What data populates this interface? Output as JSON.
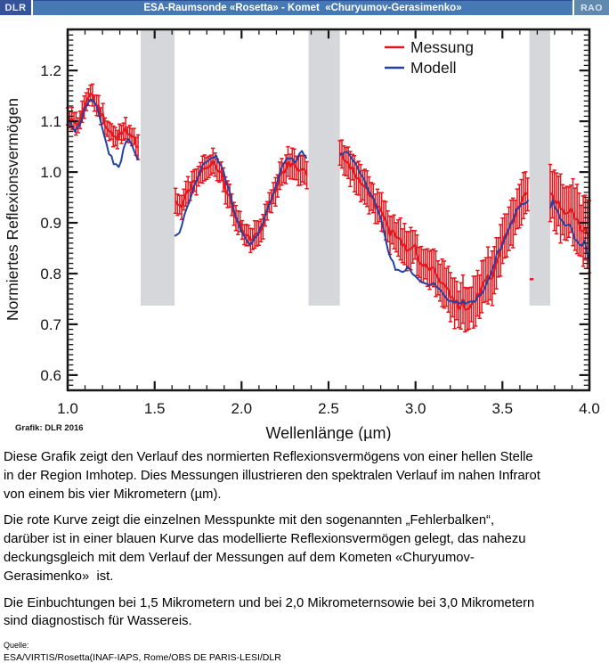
{
  "header": {
    "left_logo": "DLR",
    "title": "ESA-Raumsonde «Rosetta» - Komet  «Churyumov-Gerasimenko»",
    "right_logo": "RAO"
  },
  "credit": "Grafik: DLR 2016",
  "description": {
    "paragraphs": [
      {
        "lines": [
          "Diese Grafik zeigt den Verlauf des normierten Reflexionsvermögens von einer hellen Stelle",
          "in der Region Imhotep. Dies Messungen illustrieren den spektralen Verlauf im nahen Infrarot",
          "von einem bis vier Mikrometern (µm)."
        ]
      },
      {
        "lines": [
          "Die rote Kurve zeigt die einzelnen Messpunkte mit den sogenannten „Fehlerbalken“,",
          "darüber ist in einer blauen Kurve das modellierte Reflexionsvermögen gelegt, das nahezu",
          "deckungsgleich mit dem Verlauf der Messungen auf dem Kometen «Churyumov-",
          "Gerasimenko»  ist."
        ]
      },
      {
        "lines": [
          "Die Einbuchtungen bei 1,5 Mikrometern und bei 2,0 Mikrometernsowie bei 3,0 Mikrometern",
          "sind diagnostisch für Wassereis."
        ]
      }
    ]
  },
  "source": {
    "label": "Quelle:",
    "line": "ESA/VIRTIS/Rosetta(INAF-IAPS, Rome/OBS DE PARIS-LESI/DLR"
  },
  "chart_data": {
    "type": "line",
    "xlabel": "Wellenlänge (µm)",
    "ylabel": "Normiertes Reflexionsvermögen",
    "xlim": [
      1.0,
      4.0
    ],
    "ylim": [
      0.57,
      1.281
    ],
    "x_major_ticks": [
      1.0,
      1.5,
      2.0,
      2.5,
      3.0,
      3.5,
      4.0
    ],
    "x_tick_labels": [
      "1.0",
      "1.5",
      "2.0",
      "2.5",
      "3.0",
      "3.5",
      "4.0"
    ],
    "x_minor_step": 0.1,
    "y_major_ticks": [
      0.6,
      0.7,
      0.8,
      0.9,
      1.0,
      1.1,
      1.2
    ],
    "y_tick_labels": [
      "0.6",
      "0.7",
      "0.8",
      "0.9",
      "1.0",
      "1.1",
      "1.2"
    ],
    "y_minor_step": 0.01,
    "grid": false,
    "legend_position": "top-right",
    "legend": [
      {
        "label": "Messung",
        "color": "#e6161d"
      },
      {
        "label": "Modell",
        "color": "#2043a5"
      }
    ],
    "colors": {
      "band": "#d5d7da",
      "axis": "#161616",
      "credit_gray": "#7c7c7c"
    },
    "masked_bands_um": [
      [
        1.42,
        1.615
      ],
      [
        2.385,
        2.565
      ],
      [
        3.655,
        3.775
      ]
    ],
    "band_bottom_value": 0.737,
    "stray_points": [
      {
        "x": 3.668,
        "y": 0.789
      }
    ],
    "series": [
      {
        "name": "Messung",
        "color": "#e6161d",
        "style": "errorbar",
        "segments": [
          [
            [
              1.0,
              1.11,
              0.018
            ],
            [
              1.02,
              1.1,
              0.018
            ],
            [
              1.045,
              1.092,
              0.018
            ],
            [
              1.07,
              1.103,
              0.018
            ],
            [
              1.1,
              1.133,
              0.018
            ],
            [
              1.13,
              1.148,
              0.018
            ],
            [
              1.16,
              1.14,
              0.018
            ],
            [
              1.195,
              1.11,
              0.018
            ],
            [
              1.235,
              1.082,
              0.018
            ],
            [
              1.275,
              1.068,
              0.018
            ],
            [
              1.305,
              1.072,
              0.018
            ],
            [
              1.335,
              1.082,
              0.018
            ],
            [
              1.36,
              1.076,
              0.018
            ],
            [
              1.385,
              1.062,
              0.019
            ],
            [
              1.405,
              1.052,
              0.02
            ]
          ],
          [
            [
              1.62,
              0.936,
              0.022
            ],
            [
              1.65,
              0.938,
              0.022
            ],
            [
              1.69,
              0.958,
              0.022
            ],
            [
              1.73,
              0.982,
              0.022
            ],
            [
              1.77,
              1.005,
              0.022
            ],
            [
              1.81,
              1.018,
              0.022
            ],
            [
              1.845,
              1.018,
              0.022
            ],
            [
              1.88,
              1.0,
              0.022
            ],
            [
              1.915,
              0.968,
              0.022
            ],
            [
              1.95,
              0.93,
              0.022
            ],
            [
              1.985,
              0.895,
              0.022
            ],
            [
              2.02,
              0.872,
              0.022
            ],
            [
              2.055,
              0.865,
              0.022
            ],
            [
              2.09,
              0.875,
              0.022
            ],
            [
              2.125,
              0.898,
              0.022
            ],
            [
              2.16,
              0.93,
              0.022
            ],
            [
              2.2,
              0.972,
              0.023
            ],
            [
              2.24,
              1.005,
              0.023
            ],
            [
              2.275,
              1.018,
              0.024
            ],
            [
              2.305,
              1.008,
              0.025
            ],
            [
              2.34,
              1.0,
              0.025
            ],
            [
              2.375,
              0.996,
              0.026
            ]
          ],
          [
            [
              2.565,
              1.042,
              0.03
            ],
            [
              2.6,
              1.018,
              0.03
            ],
            [
              2.64,
              1.004,
              0.03
            ],
            [
              2.68,
              0.985,
              0.03
            ],
            [
              2.73,
              0.956,
              0.03
            ],
            [
              2.78,
              0.934,
              0.031
            ],
            [
              2.83,
              0.904,
              0.032
            ],
            [
              2.87,
              0.876,
              0.032
            ],
            [
              2.91,
              0.868,
              0.033
            ],
            [
              2.95,
              0.846,
              0.034
            ],
            [
              2.99,
              0.855,
              0.034
            ],
            [
              3.03,
              0.824,
              0.035
            ],
            [
              3.07,
              0.812,
              0.036
            ],
            [
              3.11,
              0.803,
              0.037
            ],
            [
              3.145,
              0.78,
              0.038
            ],
            [
              3.18,
              0.768,
              0.039
            ],
            [
              3.215,
              0.752,
              0.04
            ],
            [
              3.245,
              0.736,
              0.04
            ],
            [
              3.27,
              0.744,
              0.04
            ],
            [
              3.3,
              0.728,
              0.041
            ],
            [
              3.33,
              0.744,
              0.041
            ],
            [
              3.36,
              0.754,
              0.042
            ],
            [
              3.39,
              0.775,
              0.043
            ],
            [
              3.415,
              0.798,
              0.045
            ],
            [
              3.44,
              0.786,
              0.043
            ],
            [
              3.47,
              0.822,
              0.042
            ],
            [
              3.5,
              0.858,
              0.041
            ],
            [
              3.53,
              0.884,
              0.04
            ],
            [
              3.56,
              0.906,
              0.04
            ],
            [
              3.59,
              0.932,
              0.04
            ],
            [
              3.62,
              0.948,
              0.04
            ],
            [
              3.645,
              0.958,
              0.04
            ]
          ],
          [
            [
              3.775,
              0.962,
              0.055
            ],
            [
              3.8,
              0.946,
              0.056
            ],
            [
              3.83,
              0.934,
              0.056
            ],
            [
              3.86,
              0.924,
              0.057
            ],
            [
              3.89,
              0.93,
              0.057
            ],
            [
              3.92,
              0.904,
              0.058
            ],
            [
              3.95,
              0.89,
              0.058
            ],
            [
              3.975,
              0.88,
              0.059
            ],
            [
              4.0,
              0.868,
              0.06
            ]
          ]
        ]
      },
      {
        "name": "Modell",
        "color": "#2043a5",
        "style": "line",
        "segments": [
          [
            [
              1.0,
              1.105
            ],
            [
              1.025,
              1.088
            ],
            [
              1.05,
              1.083
            ],
            [
              1.075,
              1.098
            ],
            [
              1.105,
              1.13
            ],
            [
              1.13,
              1.143
            ],
            [
              1.16,
              1.14
            ],
            [
              1.195,
              1.093
            ],
            [
              1.235,
              1.042
            ],
            [
              1.27,
              1.015
            ],
            [
              1.3,
              1.008
            ],
            [
              1.33,
              1.06
            ],
            [
              1.355,
              1.066
            ],
            [
              1.38,
              1.04
            ],
            [
              1.405,
              1.026
            ]
          ],
          [
            [
              1.615,
              0.875
            ],
            [
              1.64,
              0.88
            ],
            [
              1.67,
              0.912
            ],
            [
              1.705,
              0.948
            ],
            [
              1.745,
              0.988
            ],
            [
              1.785,
              1.018
            ],
            [
              1.825,
              1.03
            ],
            [
              1.86,
              1.028
            ],
            [
              1.895,
              1.0
            ],
            [
              1.93,
              0.96
            ],
            [
              1.965,
              0.915
            ],
            [
              2.0,
              0.882
            ],
            [
              2.035,
              0.86
            ],
            [
              2.07,
              0.862
            ],
            [
              2.105,
              0.885
            ],
            [
              2.14,
              0.915
            ],
            [
              2.18,
              0.955
            ],
            [
              2.22,
              0.998
            ],
            [
              2.255,
              1.025
            ],
            [
              2.285,
              1.03
            ],
            [
              2.31,
              1.016
            ],
            [
              2.34,
              1.04
            ],
            [
              2.36,
              1.034
            ],
            [
              2.375,
              1.03
            ]
          ],
          [
            [
              2.565,
              1.03
            ],
            [
              2.59,
              1.042
            ],
            [
              2.615,
              1.034
            ],
            [
              2.65,
              1.016
            ],
            [
              2.69,
              0.995
            ],
            [
              2.73,
              0.966
            ],
            [
              2.77,
              0.936
            ],
            [
              2.81,
              0.895
            ],
            [
              2.85,
              0.838
            ],
            [
              2.885,
              0.81
            ],
            [
              2.92,
              0.802
            ],
            [
              2.955,
              0.812
            ],
            [
              2.99,
              0.8
            ],
            [
              3.025,
              0.785
            ],
            [
              3.06,
              0.778
            ],
            [
              3.095,
              0.782
            ],
            [
              3.13,
              0.77
            ],
            [
              3.165,
              0.756
            ],
            [
              3.2,
              0.748
            ],
            [
              3.24,
              0.742
            ],
            [
              3.28,
              0.745
            ],
            [
              3.32,
              0.742
            ],
            [
              3.36,
              0.752
            ],
            [
              3.4,
              0.775
            ],
            [
              3.43,
              0.798
            ],
            [
              3.45,
              0.812
            ],
            [
              3.465,
              0.842
            ],
            [
              3.48,
              0.838
            ],
            [
              3.51,
              0.868
            ],
            [
              3.545,
              0.898
            ],
            [
              3.58,
              0.922
            ],
            [
              3.615,
              0.936
            ],
            [
              3.65,
              0.944
            ]
          ],
          [
            [
              3.775,
              0.928
            ],
            [
              3.79,
              0.948
            ],
            [
              3.81,
              0.922
            ],
            [
              3.84,
              0.906
            ],
            [
              3.865,
              0.892
            ],
            [
              3.885,
              0.9
            ],
            [
              3.91,
              0.876
            ],
            [
              3.935,
              0.858
            ],
            [
              3.955,
              0.852
            ],
            [
              3.97,
              0.868
            ],
            [
              3.985,
              0.84
            ],
            [
              4.0,
              0.82
            ]
          ]
        ]
      }
    ]
  }
}
